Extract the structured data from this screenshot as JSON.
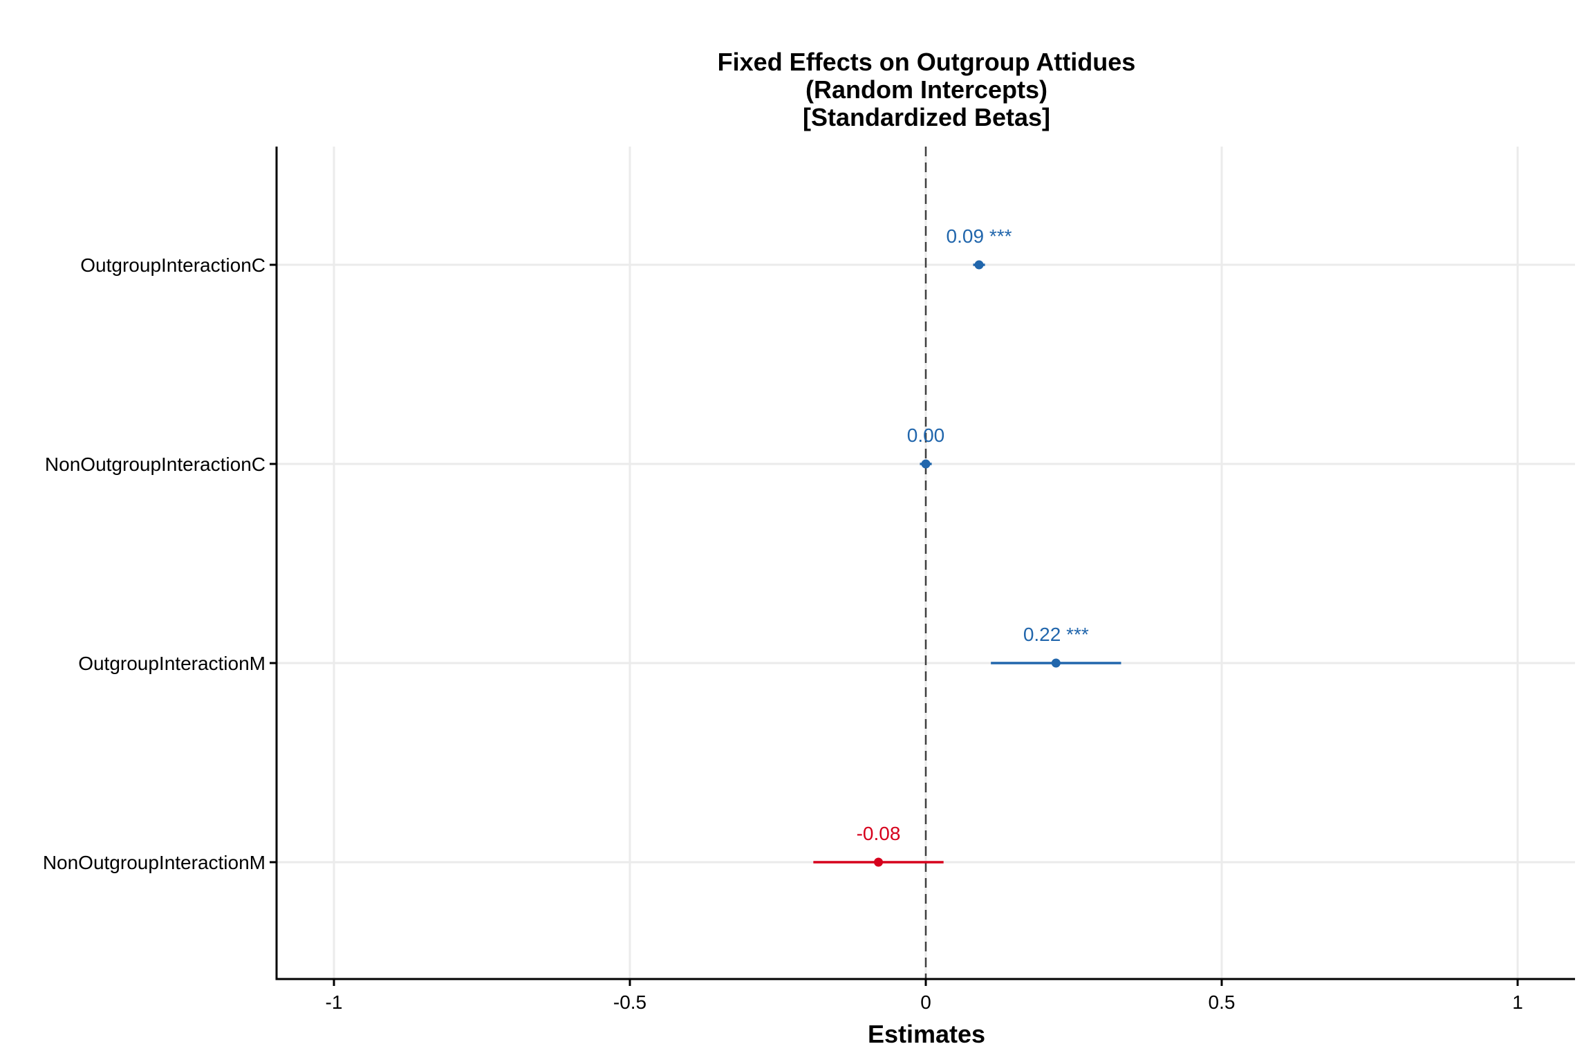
{
  "chart_data": {
    "type": "forest",
    "title_lines": [
      "Fixed Effects on Outgroup Attidues",
      "(Random Intercepts)",
      "[Standardized Betas]"
    ],
    "xlabel": "Estimates",
    "ylabel": "",
    "xlim": [
      -1.1,
      1.1
    ],
    "xticks": [
      -1,
      -0.5,
      0,
      0.5,
      1
    ],
    "xtick_labels": [
      "-1",
      "-0.5",
      "0",
      "0.5",
      "1"
    ],
    "grid": true,
    "reference_line": 0,
    "colors": {
      "positive": "#2166ac",
      "negative": "#d6001c",
      "axis": "#000000",
      "grid": "#ebebeb",
      "refline": "#404040"
    },
    "terms": [
      {
        "name": "OutgroupInteractionC",
        "estimate": 0.09,
        "ci": [
          0.08,
          0.1
        ],
        "label": "0.09 ***"
      },
      {
        "name": "NonOutgroupInteractionC",
        "estimate": 0.0,
        "ci": [
          -0.01,
          0.01
        ],
        "label": "0.00"
      },
      {
        "name": "OutgroupInteractionM",
        "estimate": 0.22,
        "ci": [
          0.11,
          0.33
        ],
        "label": "0.22 ***"
      },
      {
        "name": "NonOutgroupInteractionM",
        "estimate": -0.08,
        "ci": [
          -0.19,
          0.03
        ],
        "label": "-0.08"
      }
    ]
  }
}
